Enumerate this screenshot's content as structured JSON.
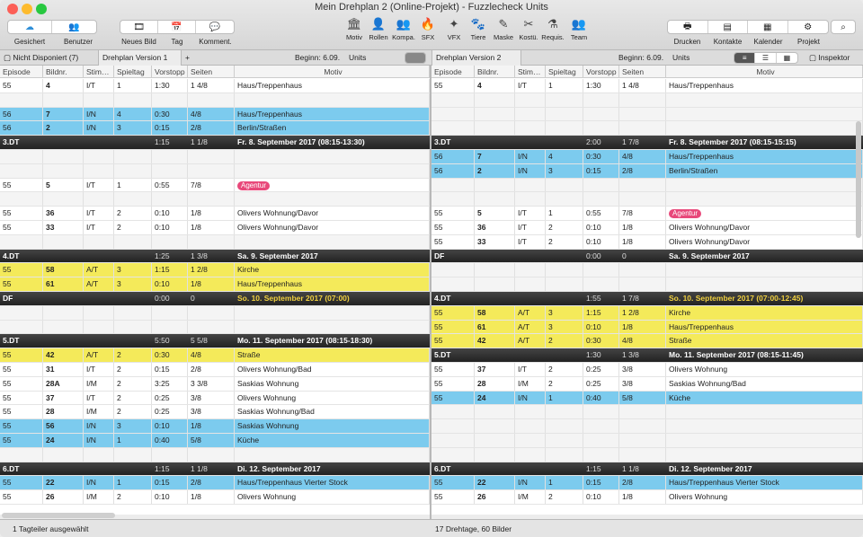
{
  "window": {
    "title": "Mein Drehplan 2 (Online-Projekt) - Fuzzlecheck Units"
  },
  "toolbar": {
    "left": [
      {
        "label": "Gesichert",
        "icon": "cloud-icon"
      },
      {
        "label": "Benutzer",
        "icon": "users-icon"
      }
    ],
    "mid": [
      {
        "label": "Neues Bild",
        "icon": "film-icon"
      },
      {
        "label": "Tag",
        "icon": "calendar-icon"
      },
      {
        "label": "Komment.",
        "icon": "comment-icon"
      }
    ],
    "items": [
      {
        "label": "Motiv",
        "icon": "building-icon",
        "g": "🏛"
      },
      {
        "label": "Rollen",
        "icon": "person-icon",
        "g": "👤"
      },
      {
        "label": "Kompa.",
        "icon": "group-icon",
        "g": "👥"
      },
      {
        "label": "SFX",
        "icon": "fire-icon",
        "g": "🔥"
      },
      {
        "label": "VFX",
        "icon": "vfx-icon",
        "g": "✦"
      },
      {
        "label": "Tiere",
        "icon": "animal-icon",
        "g": "🐾"
      },
      {
        "label": "Maske",
        "icon": "brush-icon",
        "g": "✎"
      },
      {
        "label": "Kostü.",
        "icon": "costume-icon",
        "g": "✂"
      },
      {
        "label": "Requis.",
        "icon": "props-icon",
        "g": "⚗"
      },
      {
        "label": "Team",
        "icon": "team-icon",
        "g": "👥"
      }
    ],
    "right": [
      {
        "label": "Drucken",
        "icon": "print-icon",
        "g": "🖶"
      },
      {
        "label": "Kontakte",
        "icon": "contacts-icon",
        "g": "▤"
      },
      {
        "label": "Kalender",
        "icon": "calendar-icon",
        "g": "▦"
      },
      {
        "label": "Projekt",
        "icon": "gear-icon",
        "g": "⚙"
      }
    ]
  },
  "tabs_left": {
    "nd": "Nicht Disponiert (7)",
    "dv1": "Drehplan Version 1",
    "plus": "+",
    "begin": "Beginn: 6.09.",
    "units": "Units"
  },
  "tabs_right": {
    "dv2": "Drehplan Version 2",
    "begin": "Beginn: 6.09.",
    "units": "Units",
    "inspector": "Inspektor"
  },
  "columns": [
    "Episode",
    "Bildnr.",
    "Stim…",
    "Spieltag",
    "Vorstopp",
    "Seiten",
    "Motiv"
  ],
  "left_rows": [
    {
      "t": "white",
      "c": [
        "55",
        "4",
        "I/T",
        "1",
        "1:30",
        "1 4/8",
        "Haus/Treppenhaus"
      ]
    },
    {
      "t": "empty",
      "c": [
        "",
        "",
        "",
        "",
        "",
        "",
        ""
      ]
    },
    {
      "t": "blue",
      "c": [
        "56",
        "7",
        "I/N",
        "4",
        "0:30",
        "4/8",
        "Haus/Treppenhaus"
      ]
    },
    {
      "t": "blue",
      "c": [
        "56",
        "2",
        "I/N",
        "3",
        "0:15",
        "2/8",
        "Berlin/Straßen"
      ]
    },
    {
      "t": "dark",
      "c": [
        "3.DT",
        "",
        "",
        "",
        "1:15",
        "1 1/8",
        "Fr. 8. September 2017 (08:15-13:30)"
      ]
    },
    {
      "t": "empty",
      "c": [
        "",
        "",
        "",
        "",
        "",
        "",
        ""
      ]
    },
    {
      "t": "empty",
      "c": [
        "",
        "",
        "",
        "",
        "",
        "",
        ""
      ]
    },
    {
      "t": "white",
      "c": [
        "55",
        "5",
        "I/T",
        "1",
        "0:55",
        "7/8",
        ""
      ],
      "badge": "Agentur"
    },
    {
      "t": "empty",
      "c": [
        "",
        "",
        "",
        "",
        "",
        "",
        ""
      ]
    },
    {
      "t": "white",
      "c": [
        "55",
        "36",
        "I/T",
        "2",
        "0:10",
        "1/8",
        "Olivers Wohnung/Davor"
      ]
    },
    {
      "t": "white",
      "c": [
        "55",
        "33",
        "I/T",
        "2",
        "0:10",
        "1/8",
        "Olivers Wohnung/Davor"
      ]
    },
    {
      "t": "empty",
      "c": [
        "",
        "",
        "",
        "",
        "",
        "",
        ""
      ]
    },
    {
      "t": "dark",
      "c": [
        "4.DT",
        "",
        "",
        "",
        "1:25",
        "1 3/8",
        "Sa. 9. September 2017"
      ]
    },
    {
      "t": "yellow",
      "c": [
        "55",
        "58",
        "A/T",
        "3",
        "1:15",
        "1 2/8",
        "Kirche"
      ]
    },
    {
      "t": "yellow",
      "c": [
        "55",
        "61",
        "A/T",
        "3",
        "0:10",
        "1/8",
        "Haus/Treppenhaus"
      ]
    },
    {
      "t": "dark df",
      "c": [
        "DF",
        "",
        "",
        "",
        "0:00",
        "0",
        "So. 10. September 2017 (07:00)"
      ]
    },
    {
      "t": "empty",
      "c": [
        "",
        "",
        "",
        "",
        "",
        "",
        ""
      ]
    },
    {
      "t": "empty",
      "c": [
        "",
        "",
        "",
        "",
        "",
        "",
        ""
      ]
    },
    {
      "t": "dark",
      "c": [
        "5.DT",
        "",
        "",
        "",
        "5:50",
        "5 5/8",
        "Mo. 11. September 2017 (08:15-18:30)"
      ]
    },
    {
      "t": "yellow",
      "c": [
        "55",
        "42",
        "A/T",
        "2",
        "0:30",
        "4/8",
        "Straße"
      ]
    },
    {
      "t": "white",
      "c": [
        "55",
        "31",
        "I/T",
        "2",
        "0:15",
        "2/8",
        "Olivers Wohnung/Bad"
      ]
    },
    {
      "t": "white",
      "c": [
        "55",
        "28A",
        "I/M",
        "2",
        "3:25",
        "3 3/8",
        "Saskias Wohnung"
      ]
    },
    {
      "t": "white",
      "c": [
        "55",
        "37",
        "I/T",
        "2",
        "0:25",
        "3/8",
        "Olivers Wohnung"
      ]
    },
    {
      "t": "white",
      "c": [
        "55",
        "28",
        "I/M",
        "2",
        "0:25",
        "3/8",
        "Saskias Wohnung/Bad"
      ]
    },
    {
      "t": "blue",
      "c": [
        "55",
        "56",
        "I/N",
        "3",
        "0:10",
        "1/8",
        "Saskias Wohnung"
      ]
    },
    {
      "t": "blue",
      "c": [
        "55",
        "24",
        "I/N",
        "1",
        "0:40",
        "5/8",
        "Küche"
      ]
    },
    {
      "t": "empty",
      "c": [
        "",
        "",
        "",
        "",
        "",
        "",
        ""
      ]
    },
    {
      "t": "dark",
      "c": [
        "6.DT",
        "",
        "",
        "",
        "1:15",
        "1 1/8",
        "Di. 12. September 2017"
      ]
    },
    {
      "t": "blue",
      "c": [
        "55",
        "22",
        "I/N",
        "1",
        "0:15",
        "2/8",
        "Haus/Treppenhaus Vierter Stock"
      ]
    },
    {
      "t": "white",
      "c": [
        "55",
        "26",
        "I/M",
        "2",
        "0:10",
        "1/8",
        "Olivers Wohnung"
      ]
    }
  ],
  "right_rows": [
    {
      "t": "white",
      "c": [
        "55",
        "4",
        "I/T",
        "1",
        "1:30",
        "1 4/8",
        "Haus/Treppenhaus"
      ]
    },
    {
      "t": "empty",
      "c": [
        "",
        "",
        "",
        "",
        "",
        "",
        ""
      ]
    },
    {
      "t": "empty",
      "c": [
        "",
        "",
        "",
        "",
        "",
        "",
        ""
      ]
    },
    {
      "t": "empty",
      "c": [
        "",
        "",
        "",
        "",
        "",
        "",
        ""
      ]
    },
    {
      "t": "dark",
      "c": [
        "3.DT",
        "",
        "",
        "",
        "2:00",
        "1 7/8",
        "Fr. 8. September 2017 (08:15-15:15)"
      ]
    },
    {
      "t": "blue",
      "c": [
        "56",
        "7",
        "I/N",
        "4",
        "0:30",
        "4/8",
        "Haus/Treppenhaus"
      ]
    },
    {
      "t": "blue",
      "c": [
        "56",
        "2",
        "I/N",
        "3",
        "0:15",
        "2/8",
        "Berlin/Straßen"
      ]
    },
    {
      "t": "empty",
      "c": [
        "",
        "",
        "",
        "",
        "",
        "",
        ""
      ]
    },
    {
      "t": "empty",
      "c": [
        "",
        "",
        "",
        "",
        "",
        "",
        ""
      ]
    },
    {
      "t": "white",
      "c": [
        "55",
        "5",
        "I/T",
        "1",
        "0:55",
        "7/8",
        ""
      ],
      "badge": "Agentur"
    },
    {
      "t": "white",
      "c": [
        "55",
        "36",
        "I/T",
        "2",
        "0:10",
        "1/8",
        "Olivers Wohnung/Davor"
      ]
    },
    {
      "t": "white",
      "c": [
        "55",
        "33",
        "I/T",
        "2",
        "0:10",
        "1/8",
        "Olivers Wohnung/Davor"
      ]
    },
    {
      "t": "dark",
      "c": [
        "DF",
        "",
        "",
        "",
        "0:00",
        "0",
        "Sa. 9. September 2017"
      ]
    },
    {
      "t": "empty",
      "c": [
        "",
        "",
        "",
        "",
        "",
        "",
        ""
      ]
    },
    {
      "t": "empty",
      "c": [
        "",
        "",
        "",
        "",
        "",
        "",
        ""
      ]
    },
    {
      "t": "dark df",
      "c": [
        "4.DT",
        "",
        "",
        "",
        "1:55",
        "1 7/8",
        "So. 10. September 2017 (07:00-12:45)"
      ]
    },
    {
      "t": "yellow",
      "c": [
        "55",
        "58",
        "A/T",
        "3",
        "1:15",
        "1 2/8",
        "Kirche"
      ]
    },
    {
      "t": "yellow",
      "c": [
        "55",
        "61",
        "A/T",
        "3",
        "0:10",
        "1/8",
        "Haus/Treppenhaus"
      ]
    },
    {
      "t": "yellow",
      "c": [
        "55",
        "42",
        "A/T",
        "2",
        "0:30",
        "4/8",
        "Straße"
      ]
    },
    {
      "t": "dark",
      "c": [
        "5.DT",
        "",
        "",
        "",
        "1:30",
        "1 3/8",
        "Mo. 11. September 2017 (08:15-11:45)"
      ]
    },
    {
      "t": "white",
      "c": [
        "55",
        "37",
        "I/T",
        "2",
        "0:25",
        "3/8",
        "Olivers Wohnung"
      ]
    },
    {
      "t": "white",
      "c": [
        "55",
        "28",
        "I/M",
        "2",
        "0:25",
        "3/8",
        "Saskias Wohnung/Bad"
      ]
    },
    {
      "t": "blue",
      "c": [
        "55",
        "24",
        "I/N",
        "1",
        "0:40",
        "5/8",
        "Küche"
      ]
    },
    {
      "t": "empty",
      "c": [
        "",
        "",
        "",
        "",
        "",
        "",
        ""
      ]
    },
    {
      "t": "empty",
      "c": [
        "",
        "",
        "",
        "",
        "",
        "",
        ""
      ]
    },
    {
      "t": "empty",
      "c": [
        "",
        "",
        "",
        "",
        "",
        "",
        ""
      ]
    },
    {
      "t": "empty",
      "c": [
        "",
        "",
        "",
        "",
        "",
        "",
        ""
      ]
    },
    {
      "t": "dark",
      "c": [
        "6.DT",
        "",
        "",
        "",
        "1:15",
        "1 1/8",
        "Di. 12. September 2017"
      ]
    },
    {
      "t": "blue",
      "c": [
        "55",
        "22",
        "I/N",
        "1",
        "0:15",
        "2/8",
        "Haus/Treppenhaus Vierter Stock"
      ]
    },
    {
      "t": "white",
      "c": [
        "55",
        "26",
        "I/M",
        "2",
        "0:10",
        "1/8",
        "Olivers Wohnung"
      ]
    }
  ],
  "status": {
    "left": "1 Tagteiler ausgewählt",
    "right": "17 Drehtage, 60 Bilder"
  },
  "colors": {
    "blue": "#7ccbee",
    "yellow": "#f4ea5a",
    "dark": "#2a2a2a",
    "badge": "#e8487a",
    "df_text": "#f0d040"
  }
}
